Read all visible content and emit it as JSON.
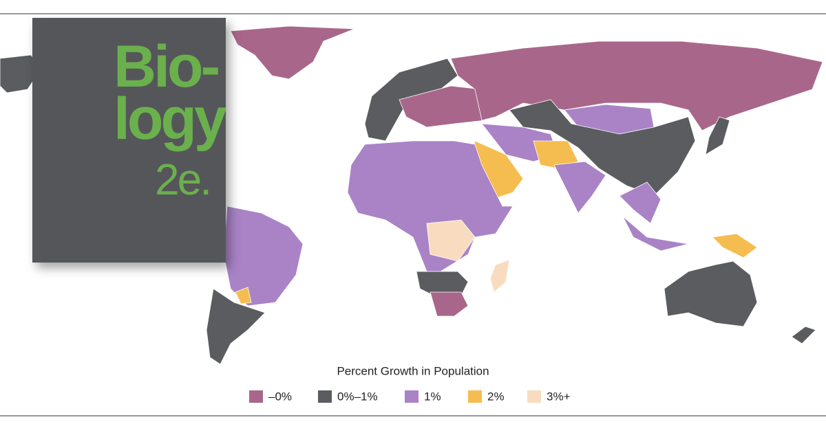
{
  "cover": {
    "title_lines": [
      "Bio-",
      "logy"
    ],
    "edition": "2e."
  },
  "legend": {
    "title": "Percent Growth in Population",
    "items": [
      {
        "label": "–0%",
        "color": "#a8678a"
      },
      {
        "label": "0%–1%",
        "color": "#5b5c60"
      },
      {
        "label": "1%",
        "color": "#a983c6"
      },
      {
        "label": "2%",
        "color": "#f5bd4f"
      },
      {
        "label": "3%+",
        "color": "#f9dcc0"
      }
    ]
  }
}
